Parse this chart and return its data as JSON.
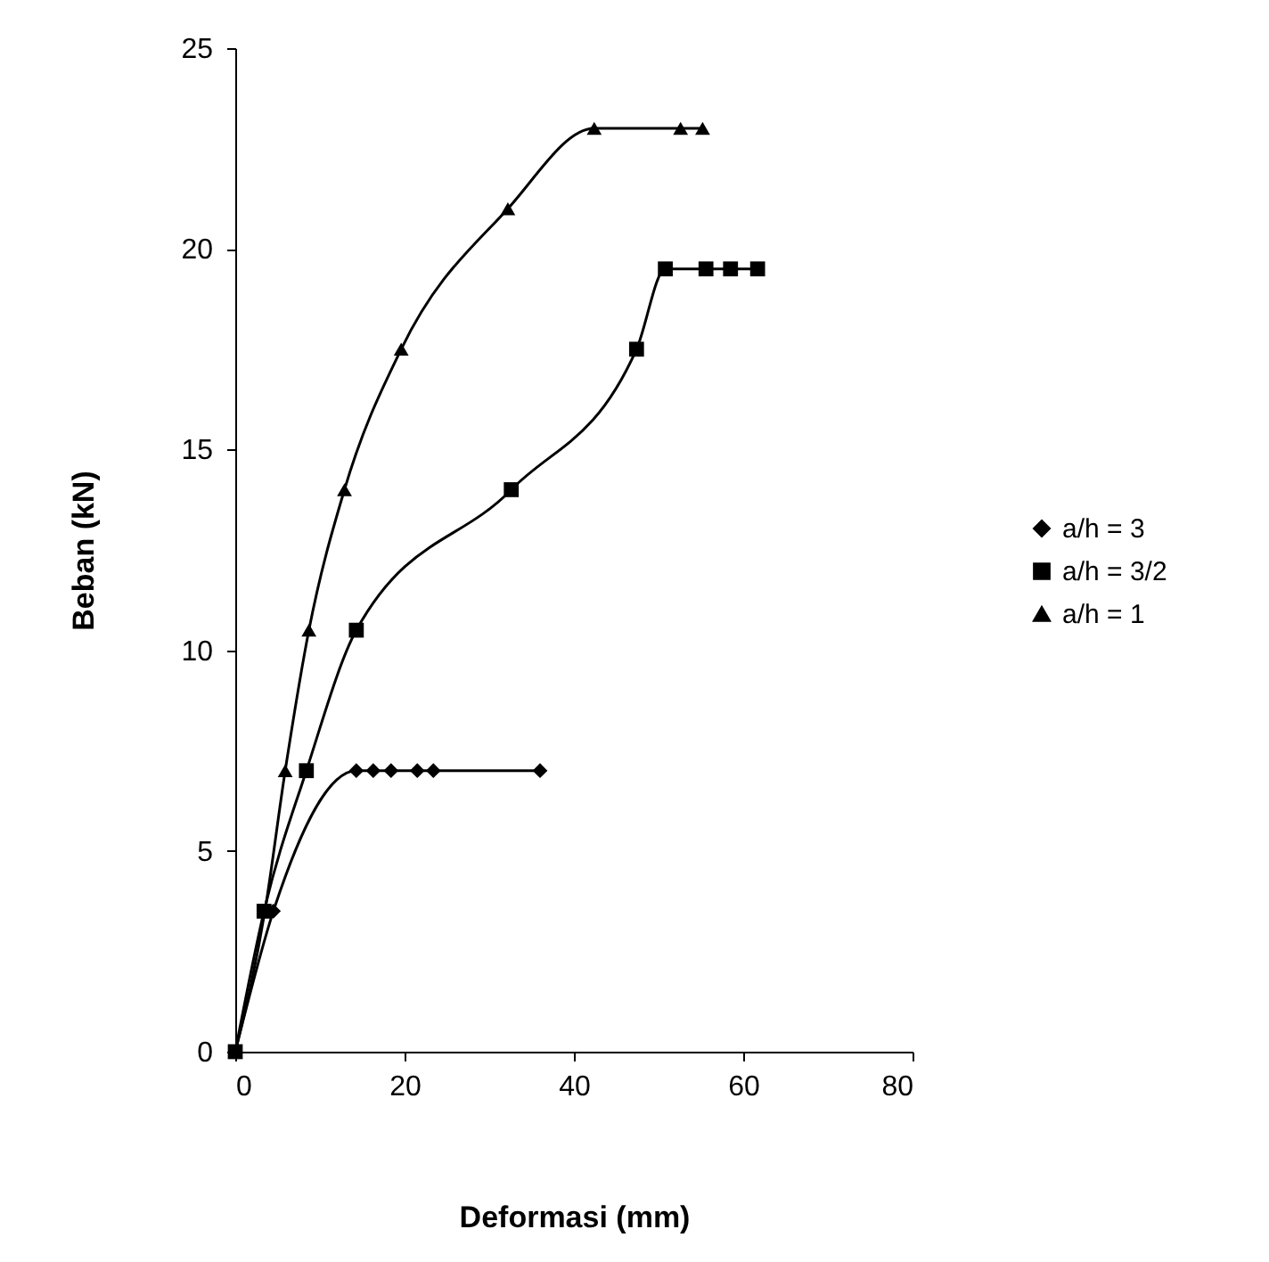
{
  "chart_data": {
    "type": "line",
    "xlabel": "Deformasi (mm)",
    "ylabel": "Beban (kN)",
    "xlim": [
      0,
      80
    ],
    "xticks": [
      0,
      20,
      40,
      60,
      80
    ],
    "ylim": [
      0,
      25
    ],
    "yticks": [
      0,
      5,
      10,
      15,
      20,
      25
    ],
    "grid": false,
    "legend": "right",
    "line_style": "solid",
    "series": [
      {
        "name": "a/h = 3",
        "color": "#000000",
        "marker": "diamond",
        "x": [
          0,
          4.5,
          14.3,
          16.3,
          18.4,
          21.5,
          23.4,
          36.0
        ],
        "values": [
          0,
          3.5,
          7,
          7,
          7,
          7,
          7,
          7
        ]
      },
      {
        "name": "a/h = 3/2",
        "color": "#000000",
        "marker": "square",
        "x": [
          0,
          3.4,
          8.4,
          14.3,
          32.6,
          47.4,
          50.8,
          55.6,
          58.5,
          61.7
        ],
        "values": [
          0,
          3.5,
          7,
          10.5,
          14,
          17.5,
          19.5,
          19.5,
          19.5,
          19.5
        ]
      },
      {
        "name": "a/h = 1",
        "color": "#000000",
        "marker": "triangle",
        "x": [
          0,
          3.5,
          5.9,
          8.7,
          12.9,
          19.6,
          32.2,
          42.4,
          52.6,
          55.2
        ],
        "values": [
          0,
          3.5,
          7,
          10.5,
          14,
          17.5,
          21,
          23,
          23,
          23
        ]
      }
    ]
  }
}
